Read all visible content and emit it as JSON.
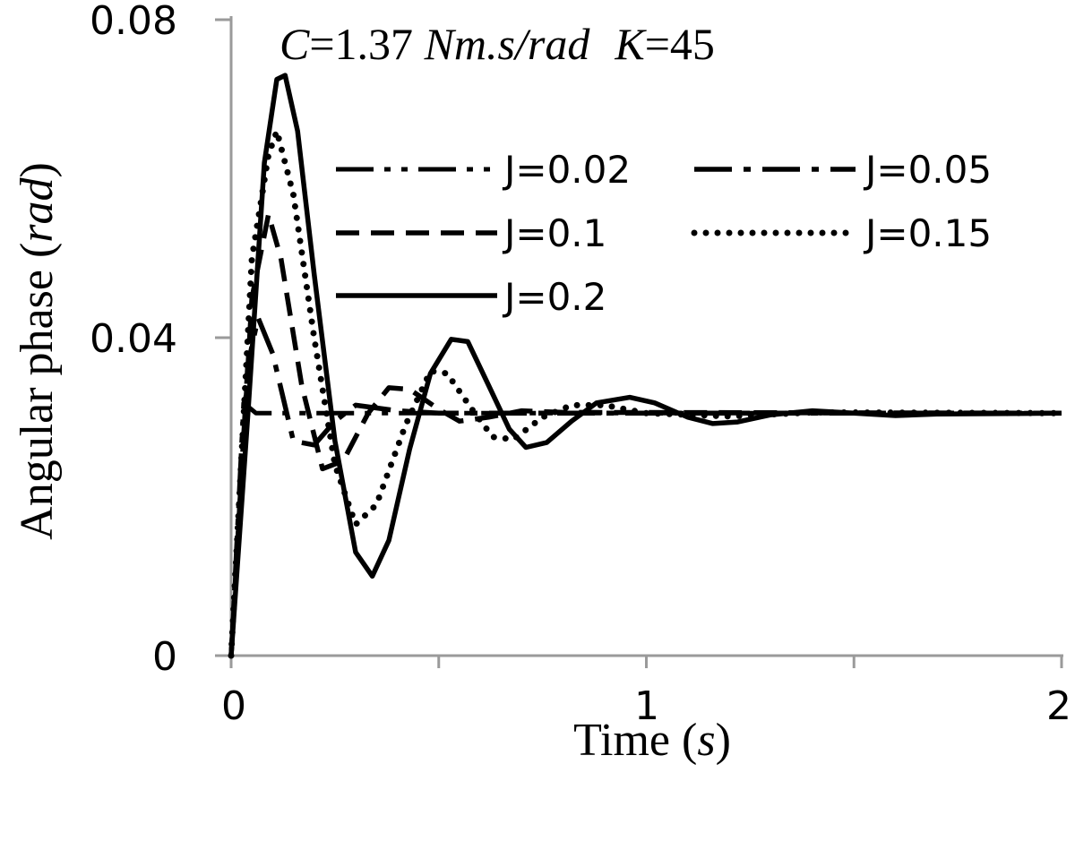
{
  "chart_data": {
    "type": "line",
    "title": "",
    "annotation": {
      "c_sym": "C",
      "c_value": "=1.37 ",
      "c_unit": "Nm.s/rad",
      "k_sym": "K",
      "k_value": "=45"
    },
    "xlabel": {
      "text": "Time (",
      "unit": "s",
      "close": ")"
    },
    "ylabel": {
      "text": "Angular phase (",
      "unit": "rad",
      "close": ")"
    },
    "xlim": [
      0,
      2
    ],
    "ylim": [
      0,
      0.08
    ],
    "x_ticks": [
      0,
      1,
      2
    ],
    "x_tick_labels": [
      "0",
      "1",
      "2"
    ],
    "x_minor_ticks": [
      0.5,
      1.5
    ],
    "y_ticks": [
      0,
      0.04,
      0.08
    ],
    "y_tick_labels": [
      "0",
      "0.04",
      "0.08"
    ],
    "grid": false,
    "legend_position": "top-right",
    "steady_state": 0.0305,
    "series": [
      {
        "name": "J=0.02",
        "dash": "long-dash-dot-dot",
        "points": [
          [
            0,
            0
          ],
          [
            0.03,
            0.0318
          ],
          [
            0.06,
            0.0305
          ],
          [
            0.1,
            0.0305
          ],
          [
            2,
            0.0305
          ]
        ]
      },
      {
        "name": "J=0.05",
        "dash": "long-dash-dot",
        "points": [
          [
            0,
            0
          ],
          [
            0.04,
            0.0365
          ],
          [
            0.065,
            0.0425
          ],
          [
            0.1,
            0.038
          ],
          [
            0.15,
            0.027
          ],
          [
            0.2,
            0.0265
          ],
          [
            0.25,
            0.0295
          ],
          [
            0.3,
            0.0315
          ],
          [
            0.4,
            0.0308
          ],
          [
            0.5,
            0.0305
          ],
          [
            2,
            0.0305
          ]
        ]
      },
      {
        "name": "J=0.1",
        "dash": "dashed",
        "points": [
          [
            0,
            0
          ],
          [
            0.05,
            0.045
          ],
          [
            0.09,
            0.0555
          ],
          [
            0.12,
            0.05
          ],
          [
            0.17,
            0.034
          ],
          [
            0.22,
            0.0235
          ],
          [
            0.27,
            0.0245
          ],
          [
            0.33,
            0.0305
          ],
          [
            0.38,
            0.0337
          ],
          [
            0.43,
            0.0335
          ],
          [
            0.5,
            0.031
          ],
          [
            0.55,
            0.0295
          ],
          [
            0.62,
            0.03
          ],
          [
            0.7,
            0.0308
          ],
          [
            0.8,
            0.0306
          ],
          [
            2,
            0.0305
          ]
        ]
      },
      {
        "name": "J=0.15",
        "dash": "dotted",
        "points": [
          [
            0,
            0
          ],
          [
            0.05,
            0.05
          ],
          [
            0.09,
            0.063
          ],
          [
            0.11,
            0.066
          ],
          [
            0.15,
            0.058
          ],
          [
            0.2,
            0.04
          ],
          [
            0.25,
            0.024
          ],
          [
            0.3,
            0.0165
          ],
          [
            0.35,
            0.019
          ],
          [
            0.42,
            0.029
          ],
          [
            0.48,
            0.0358
          ],
          [
            0.52,
            0.0355
          ],
          [
            0.58,
            0.031
          ],
          [
            0.63,
            0.0275
          ],
          [
            0.68,
            0.0272
          ],
          [
            0.75,
            0.03
          ],
          [
            0.82,
            0.0315
          ],
          [
            0.9,
            0.0315
          ],
          [
            1.0,
            0.0305
          ],
          [
            1.2,
            0.0301
          ],
          [
            1.4,
            0.0306
          ],
          [
            2,
            0.0305
          ]
        ]
      },
      {
        "name": "J=0.2",
        "dash": "solid",
        "points": [
          [
            0,
            0
          ],
          [
            0.04,
            0.03
          ],
          [
            0.08,
            0.062
          ],
          [
            0.11,
            0.0725
          ],
          [
            0.13,
            0.073
          ],
          [
            0.16,
            0.066
          ],
          [
            0.2,
            0.048
          ],
          [
            0.25,
            0.027
          ],
          [
            0.3,
            0.013
          ],
          [
            0.34,
            0.01
          ],
          [
            0.38,
            0.0145
          ],
          [
            0.43,
            0.026
          ],
          [
            0.48,
            0.0355
          ],
          [
            0.53,
            0.0398
          ],
          [
            0.57,
            0.0395
          ],
          [
            0.62,
            0.034
          ],
          [
            0.67,
            0.0285
          ],
          [
            0.71,
            0.0262
          ],
          [
            0.76,
            0.0268
          ],
          [
            0.82,
            0.0295
          ],
          [
            0.88,
            0.0318
          ],
          [
            0.96,
            0.0325
          ],
          [
            1.02,
            0.0318
          ],
          [
            1.1,
            0.03
          ],
          [
            1.16,
            0.0292
          ],
          [
            1.22,
            0.0294
          ],
          [
            1.3,
            0.0303
          ],
          [
            1.4,
            0.0308
          ],
          [
            1.5,
            0.0305
          ],
          [
            1.6,
            0.0302
          ],
          [
            1.7,
            0.0304
          ],
          [
            2,
            0.0305
          ]
        ]
      }
    ]
  },
  "colors": {
    "axis": "#9a9a9a",
    "line": "#000000",
    "background": "#ffffff"
  }
}
